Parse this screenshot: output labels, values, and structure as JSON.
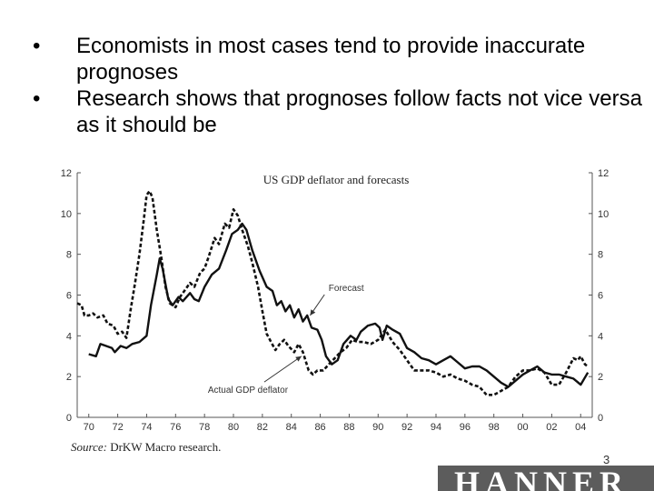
{
  "bullets": [
    {
      "marker": "•",
      "text": "Economists in most cases tend to provide inaccurate prognoses"
    },
    {
      "marker": "•",
      "text": "Research shows that prognoses follow facts not vice versa as it should be"
    }
  ],
  "chart_data": {
    "type": "line",
    "title": "US GDP deflator and forecasts",
    "xlabel": "",
    "ylabel": "",
    "xlim": [
      1969.2,
      2004.8
    ],
    "ylim": [
      0,
      12
    ],
    "x_tick_labels": [
      "70",
      "72",
      "74",
      "76",
      "78",
      "80",
      "82",
      "84",
      "86",
      "88",
      "90",
      "92",
      "94",
      "96",
      "98",
      "00",
      "02",
      "04"
    ],
    "x_tick_values": [
      1970,
      1972,
      1974,
      1976,
      1978,
      1980,
      1982,
      1984,
      1986,
      1988,
      1990,
      1992,
      1994,
      1996,
      1998,
      2000,
      2002,
      2004
    ],
    "y_ticks": [
      0,
      2,
      4,
      6,
      8,
      10,
      12
    ],
    "grid": false,
    "series": [
      {
        "name": "Forecast",
        "style": "solid",
        "color": "#111111",
        "points": [
          [
            1970.0,
            3.1
          ],
          [
            1970.5,
            3.0
          ],
          [
            1970.8,
            3.6
          ],
          [
            1971.2,
            3.5
          ],
          [
            1971.6,
            3.4
          ],
          [
            1971.8,
            3.2
          ],
          [
            1972.2,
            3.5
          ],
          [
            1972.6,
            3.4
          ],
          [
            1973.0,
            3.6
          ],
          [
            1973.5,
            3.7
          ],
          [
            1974.0,
            4.0
          ],
          [
            1974.3,
            5.5
          ],
          [
            1974.7,
            7.0
          ],
          [
            1974.9,
            7.8
          ],
          [
            1975.1,
            7.3
          ],
          [
            1975.5,
            5.8
          ],
          [
            1975.8,
            5.5
          ],
          [
            1976.2,
            5.9
          ],
          [
            1976.5,
            5.7
          ],
          [
            1977.0,
            6.1
          ],
          [
            1977.3,
            5.8
          ],
          [
            1977.6,
            5.7
          ],
          [
            1978.0,
            6.4
          ],
          [
            1978.5,
            7.0
          ],
          [
            1979.0,
            7.3
          ],
          [
            1979.5,
            8.2
          ],
          [
            1979.9,
            9.0
          ],
          [
            1980.3,
            9.2
          ],
          [
            1980.6,
            9.5
          ],
          [
            1980.9,
            9.2
          ],
          [
            1981.3,
            8.2
          ],
          [
            1981.8,
            7.2
          ],
          [
            1982.3,
            6.4
          ],
          [
            1982.7,
            6.2
          ],
          [
            1983.0,
            5.5
          ],
          [
            1983.3,
            5.7
          ],
          [
            1983.6,
            5.2
          ],
          [
            1983.9,
            5.5
          ],
          [
            1984.2,
            4.9
          ],
          [
            1984.5,
            5.3
          ],
          [
            1984.8,
            4.7
          ],
          [
            1985.1,
            5.0
          ],
          [
            1985.4,
            4.4
          ],
          [
            1985.8,
            4.3
          ],
          [
            1986.1,
            3.8
          ],
          [
            1986.4,
            3.0
          ],
          [
            1986.8,
            2.6
          ],
          [
            1987.2,
            2.8
          ],
          [
            1987.6,
            3.6
          ],
          [
            1988.1,
            4.0
          ],
          [
            1988.5,
            3.8
          ],
          [
            1988.8,
            4.2
          ],
          [
            1989.3,
            4.5
          ],
          [
            1989.8,
            4.6
          ],
          [
            1990.1,
            4.4
          ],
          [
            1990.3,
            3.8
          ],
          [
            1990.6,
            4.5
          ],
          [
            1991.0,
            4.3
          ],
          [
            1991.5,
            4.1
          ],
          [
            1992.0,
            3.4
          ],
          [
            1992.5,
            3.2
          ],
          [
            1993.0,
            2.9
          ],
          [
            1993.5,
            2.8
          ],
          [
            1994.0,
            2.6
          ],
          [
            1994.5,
            2.8
          ],
          [
            1995.0,
            3.0
          ],
          [
            1995.5,
            2.7
          ],
          [
            1996.0,
            2.4
          ],
          [
            1996.5,
            2.5
          ],
          [
            1997.0,
            2.5
          ],
          [
            1997.5,
            2.3
          ],
          [
            1998.0,
            2.0
          ],
          [
            1998.5,
            1.7
          ],
          [
            1999.0,
            1.5
          ],
          [
            1999.5,
            1.8
          ],
          [
            2000.0,
            2.1
          ],
          [
            2000.5,
            2.3
          ],
          [
            2001.0,
            2.5
          ],
          [
            2001.5,
            2.2
          ],
          [
            2002.0,
            2.1
          ],
          [
            2002.5,
            2.1
          ],
          [
            2003.0,
            2.0
          ],
          [
            2003.5,
            1.9
          ],
          [
            2004.0,
            1.6
          ],
          [
            2004.5,
            2.2
          ]
        ]
      },
      {
        "name": "Actual GDP deflator",
        "style": "dashed",
        "color": "#111111",
        "points": [
          [
            1969.2,
            5.6
          ],
          [
            1969.5,
            5.5
          ],
          [
            1969.7,
            5.0
          ],
          [
            1970.0,
            5.0
          ],
          [
            1970.3,
            5.1
          ],
          [
            1970.6,
            4.9
          ],
          [
            1971.0,
            5.0
          ],
          [
            1971.3,
            4.6
          ],
          [
            1971.7,
            4.5
          ],
          [
            1972.0,
            4.1
          ],
          [
            1972.3,
            4.2
          ],
          [
            1972.6,
            3.9
          ],
          [
            1972.9,
            5.3
          ],
          [
            1973.2,
            6.6
          ],
          [
            1973.5,
            8.0
          ],
          [
            1973.8,
            9.7
          ],
          [
            1974.0,
            10.9
          ],
          [
            1974.2,
            11.1
          ],
          [
            1974.4,
            10.8
          ],
          [
            1974.7,
            9.2
          ],
          [
            1975.0,
            7.9
          ],
          [
            1975.3,
            6.4
          ],
          [
            1975.6,
            5.6
          ],
          [
            1976.0,
            5.4
          ],
          [
            1976.3,
            5.9
          ],
          [
            1976.7,
            6.3
          ],
          [
            1977.0,
            6.6
          ],
          [
            1977.3,
            6.4
          ],
          [
            1977.7,
            7.1
          ],
          [
            1978.0,
            7.3
          ],
          [
            1978.3,
            7.9
          ],
          [
            1978.7,
            8.8
          ],
          [
            1979.0,
            8.5
          ],
          [
            1979.4,
            9.5
          ],
          [
            1979.7,
            9.3
          ],
          [
            1980.0,
            10.2
          ],
          [
            1980.3,
            9.9
          ],
          [
            1980.6,
            9.2
          ],
          [
            1981.0,
            8.4
          ],
          [
            1981.3,
            7.6
          ],
          [
            1981.7,
            6.4
          ],
          [
            1982.0,
            5.2
          ],
          [
            1982.3,
            4.1
          ],
          [
            1982.6,
            3.7
          ],
          [
            1982.9,
            3.3
          ],
          [
            1983.2,
            3.6
          ],
          [
            1983.5,
            3.8
          ],
          [
            1983.8,
            3.5
          ],
          [
            1984.2,
            3.2
          ],
          [
            1984.5,
            3.6
          ],
          [
            1984.8,
            3.2
          ],
          [
            1985.2,
            2.3
          ],
          [
            1985.5,
            2.1
          ],
          [
            1985.8,
            2.3
          ],
          [
            1986.2,
            2.3
          ],
          [
            1986.6,
            2.6
          ],
          [
            1987.0,
            2.9
          ],
          [
            1987.4,
            3.2
          ],
          [
            1987.8,
            3.4
          ],
          [
            1988.2,
            3.8
          ],
          [
            1988.6,
            3.7
          ],
          [
            1989.0,
            3.7
          ],
          [
            1989.5,
            3.6
          ],
          [
            1990.0,
            3.8
          ],
          [
            1990.5,
            4.3
          ],
          [
            1991.0,
            3.7
          ],
          [
            1991.5,
            3.3
          ],
          [
            1992.0,
            2.8
          ],
          [
            1992.5,
            2.3
          ],
          [
            1993.0,
            2.3
          ],
          [
            1993.5,
            2.3
          ],
          [
            1994.0,
            2.2
          ],
          [
            1994.5,
            2.0
          ],
          [
            1995.0,
            2.1
          ],
          [
            1995.5,
            1.9
          ],
          [
            1996.0,
            1.8
          ],
          [
            1996.5,
            1.6
          ],
          [
            1997.0,
            1.5
          ],
          [
            1997.5,
            1.1
          ],
          [
            1998.0,
            1.1
          ],
          [
            1998.5,
            1.3
          ],
          [
            1999.0,
            1.5
          ],
          [
            1999.5,
            2.0
          ],
          [
            2000.0,
            2.3
          ],
          [
            2000.5,
            2.3
          ],
          [
            2001.0,
            2.4
          ],
          [
            2001.5,
            2.2
          ],
          [
            2002.0,
            1.6
          ],
          [
            2002.5,
            1.6
          ],
          [
            2003.0,
            2.2
          ],
          [
            2003.5,
            2.9
          ],
          [
            2003.8,
            2.8
          ],
          [
            2004.0,
            3.0
          ],
          [
            2004.3,
            2.6
          ],
          [
            2004.5,
            2.5
          ]
        ]
      }
    ],
    "annotations": [
      {
        "text": "Forecast",
        "label_at": [
          1987.8,
          6.2
        ],
        "arrow_to": [
          1985.3,
          5.0
        ]
      },
      {
        "text": "Actual GDP deflator",
        "label_at": [
          1981.0,
          1.2
        ],
        "arrow_to": [
          1984.7,
          3.0
        ]
      }
    ]
  },
  "source": {
    "prefix": "Source:",
    "text": "DrKW Macro research."
  },
  "page_number": "3",
  "logo_text": "HANNER"
}
